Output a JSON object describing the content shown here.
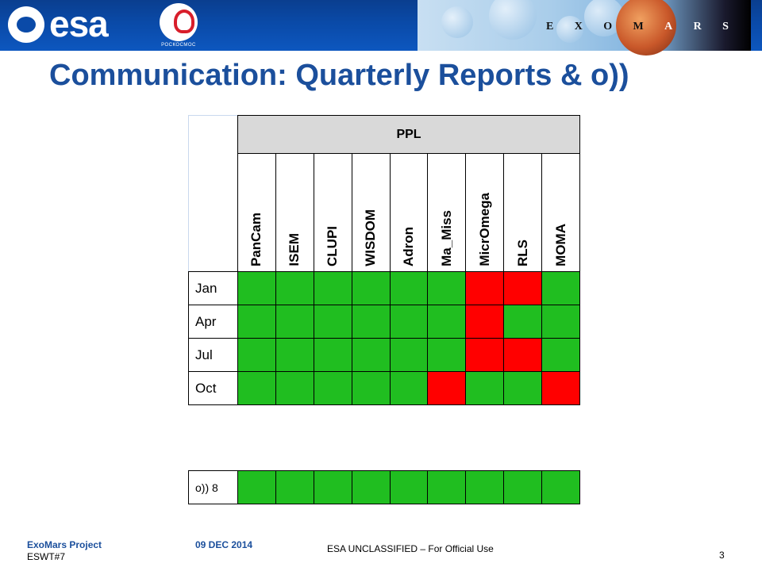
{
  "header": {
    "esa_logo_text": "esa",
    "roscosmos_logo_text": "РОСКОСМОС",
    "exomars_letters": [
      "E",
      "X",
      "O",
      "M",
      "A",
      "R",
      "S"
    ]
  },
  "title": "Communication: Quarterly Reports & o))",
  "table": {
    "group_header": "PPL",
    "instruments": [
      "PanCam",
      "ISEM",
      "CLUPI",
      "WISDOM",
      "Adron",
      "Ma_Miss",
      "MicrOmega",
      "RLS",
      "MOMA"
    ],
    "colors": {
      "green": "#20be20",
      "red": "#ff0000"
    },
    "rows": [
      {
        "label": "Jan",
        "status": [
          "green",
          "green",
          "green",
          "green",
          "green",
          "green",
          "red",
          "red",
          "green"
        ]
      },
      {
        "label": "Apr",
        "status": [
          "green",
          "green",
          "green",
          "green",
          "green",
          "green",
          "red",
          "green",
          "green"
        ]
      },
      {
        "label": "Jul",
        "status": [
          "green",
          "green",
          "green",
          "green",
          "green",
          "green",
          "red",
          "red",
          "green"
        ]
      },
      {
        "label": "Oct",
        "status": [
          "green",
          "green",
          "green",
          "green",
          "green",
          "red",
          "green",
          "green",
          "red"
        ]
      }
    ],
    "extra_row": {
      "label": "o)) 8",
      "status": [
        "green",
        "green",
        "green",
        "green",
        "green",
        "green",
        "green",
        "green",
        "green"
      ]
    }
  },
  "footer": {
    "project": "ExoMars Project",
    "meeting": "ESWT#7",
    "date": "09 DEC 2014",
    "classification": "ESA UNCLASSIFIED – For Official Use",
    "page_number": "3"
  }
}
